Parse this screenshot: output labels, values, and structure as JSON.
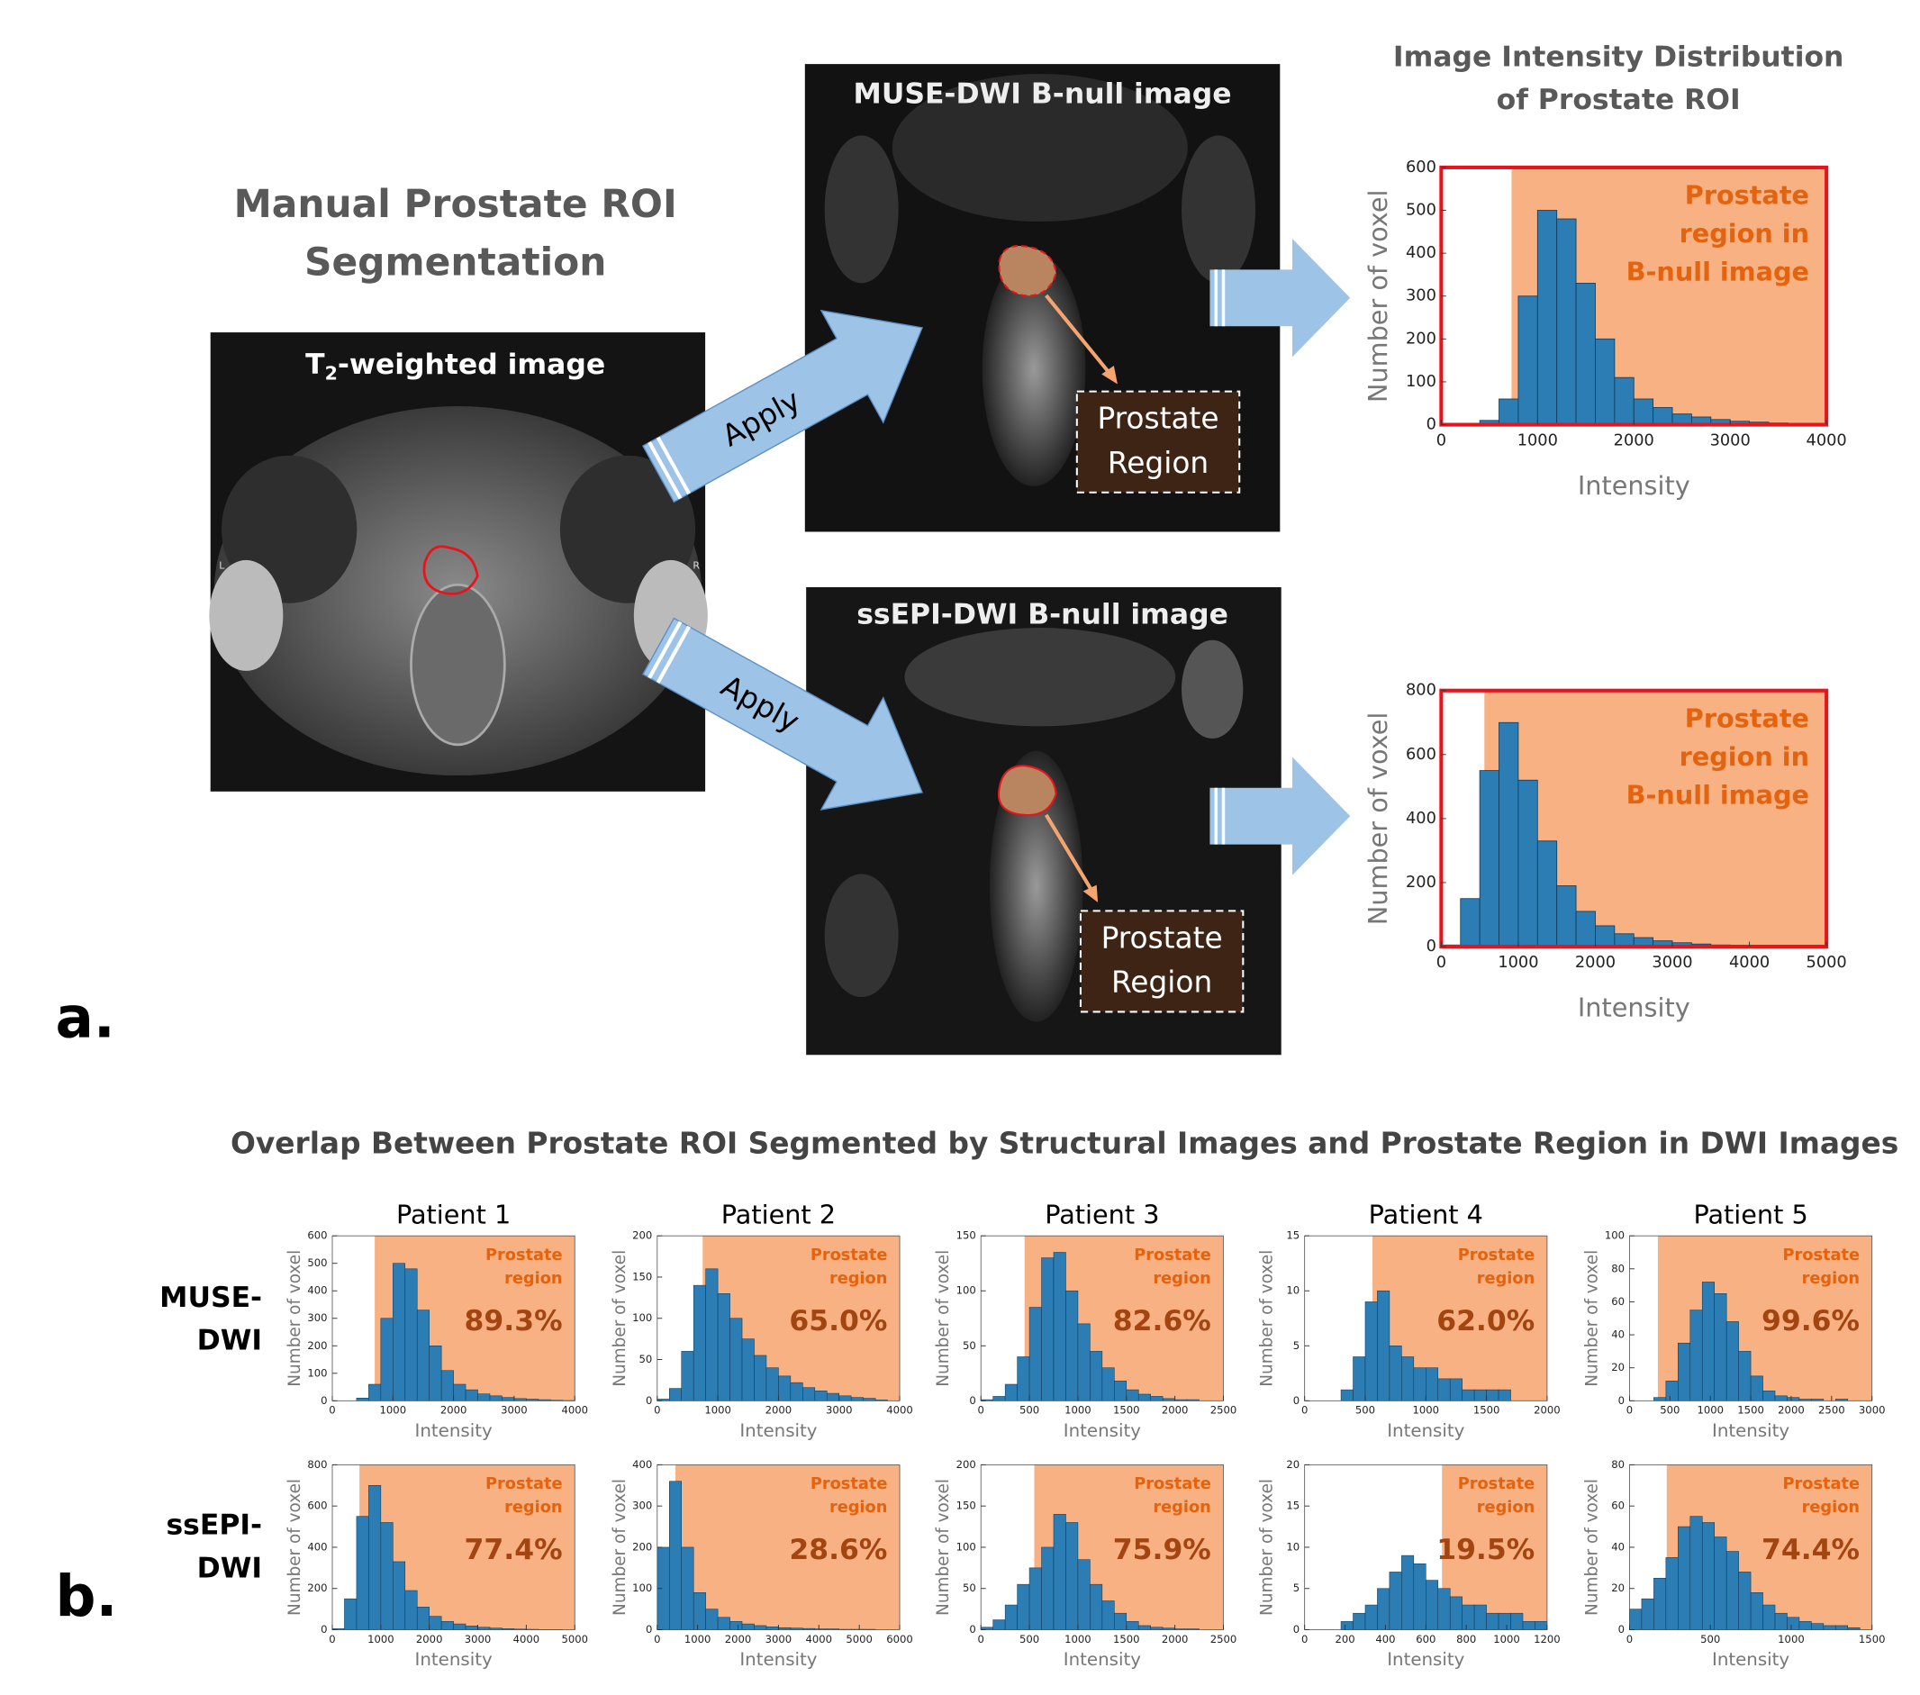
{
  "figure": {
    "panel_a_label": "a.",
    "panel_b_label": "b.",
    "segmentation_title": [
      "Manual Prostate ROI",
      "Segmentation"
    ],
    "t2_image_title": {
      "main": "T",
      "subscript": "2",
      "suffix": "-weighted image"
    },
    "orientation_marks": [
      "L",
      "R"
    ],
    "muse_image_title": "MUSE-DWI B-null image",
    "ssepi_image_title": "ssEPI-DWI B-null image",
    "region_box_lines": [
      "Prostate",
      "Region"
    ],
    "apply_labels": [
      "Apply",
      "Apply"
    ],
    "distribution_title": [
      "Image Intensity Distribution",
      "of Prostate ROI"
    ],
    "overlap_title": "Overlap Between Prostate ROI Segmented by Structural Images and Prostate Region in DWI Images",
    "row_labels": [
      [
        "MUSE-",
        "DWI"
      ],
      [
        "ssEPI-",
        "DWI"
      ]
    ]
  },
  "chart_data": [
    {
      "type": "histogram",
      "xlabel": "Intensity",
      "ylabel": "Number of voxel",
      "annotation": [
        "Prostate",
        "region in",
        "B-null image"
      ],
      "bins": [
        0,
        200,
        400,
        600,
        800,
        1000,
        1200,
        1400,
        1600,
        1800,
        2000,
        2200,
        2400,
        2600,
        2800,
        3000,
        3200,
        3400,
        3600,
        3800,
        4000
      ],
      "values": [
        0,
        0,
        10,
        60,
        300,
        500,
        480,
        330,
        200,
        110,
        60,
        40,
        25,
        18,
        12,
        8,
        6,
        4,
        2,
        1
      ],
      "color": "#2b7db3",
      "shade_from": 730,
      "shade_color": "#f8b183",
      "frame_color": "#e8141b",
      "xlim": [
        0,
        4000
      ],
      "ylim": [
        0,
        600
      ],
      "xticks": [
        0,
        1000,
        2000,
        3000,
        4000
      ],
      "yticks": [
        0,
        100,
        200,
        300,
        400,
        500,
        600
      ]
    },
    {
      "type": "histogram",
      "xlabel": "Intensity",
      "ylabel": "Number of voxel",
      "annotation": [
        "Prostate",
        "region in",
        "B-null image"
      ],
      "bins": [
        0,
        250,
        500,
        750,
        1000,
        1250,
        1500,
        1750,
        2000,
        2250,
        2500,
        2750,
        3000,
        3250,
        3500,
        3750,
        4000,
        4250,
        4500,
        4750,
        5000
      ],
      "values": [
        5,
        150,
        550,
        700,
        520,
        330,
        190,
        110,
        65,
        40,
        28,
        18,
        12,
        8,
        5,
        3,
        2,
        1,
        1,
        0
      ],
      "color": "#2b7db3",
      "shade_from": 560,
      "shade_color": "#f8b183",
      "frame_color": "#e8141b",
      "xlim": [
        0,
        5000
      ],
      "ylim": [
        0,
        800
      ],
      "xticks": [
        0,
        1000,
        2000,
        3000,
        4000,
        5000
      ],
      "yticks": [
        0,
        200,
        400,
        600,
        800
      ]
    },
    {
      "type": "histogram",
      "title": "Patient 1",
      "xlabel": "Intensity",
      "ylabel": "Number of voxel",
      "annotation": [
        "Prostate",
        "region"
      ],
      "percent": "89.3%",
      "bins": [
        0,
        200,
        400,
        600,
        800,
        1000,
        1200,
        1400,
        1600,
        1800,
        2000,
        2200,
        2400,
        2600,
        2800,
        3000,
        3200,
        3400,
        3600,
        3800,
        4000
      ],
      "values": [
        0,
        0,
        10,
        60,
        300,
        500,
        480,
        330,
        200,
        110,
        60,
        40,
        25,
        18,
        12,
        8,
        6,
        4,
        2,
        1
      ],
      "color": "#2b7db3",
      "shade_from": 700,
      "shade_color": "#f8b183",
      "xlim": [
        0,
        4000
      ],
      "ylim": [
        0,
        600
      ],
      "xticks": [
        0,
        1000,
        2000,
        3000,
        4000
      ],
      "yticks": [
        0,
        100,
        200,
        300,
        400,
        500,
        600
      ]
    },
    {
      "type": "histogram",
      "title": "Patient 2",
      "xlabel": "Intensity",
      "ylabel": "Number of voxel",
      "annotation": [
        "Prostate",
        "region"
      ],
      "percent": "65.0%",
      "bins": [
        0,
        200,
        400,
        600,
        800,
        1000,
        1200,
        1400,
        1600,
        1800,
        2000,
        2200,
        2400,
        2600,
        2800,
        3000,
        3200,
        3400,
        3600,
        3800,
        4000
      ],
      "values": [
        2,
        15,
        60,
        140,
        160,
        130,
        100,
        75,
        55,
        40,
        30,
        22,
        16,
        12,
        9,
        6,
        4,
        3,
        1,
        0
      ],
      "color": "#2b7db3",
      "shade_from": 750,
      "shade_color": "#f8b183",
      "xlim": [
        0,
        4000
      ],
      "ylim": [
        0,
        200
      ],
      "xticks": [
        0,
        1000,
        2000,
        3000,
        4000
      ],
      "yticks": [
        0,
        50,
        100,
        150,
        200
      ]
    },
    {
      "type": "histogram",
      "title": "Patient 3",
      "xlabel": "Intensity",
      "ylabel": "Number of voxel",
      "annotation": [
        "Prostate",
        "region"
      ],
      "percent": "82.6%",
      "bins": [
        0,
        125,
        250,
        375,
        500,
        625,
        750,
        875,
        1000,
        1125,
        1250,
        1375,
        1500,
        1625,
        1750,
        1875,
        2000,
        2125,
        2250,
        2375,
        2500
      ],
      "values": [
        1,
        4,
        15,
        40,
        85,
        130,
        135,
        100,
        70,
        45,
        30,
        18,
        10,
        6,
        4,
        2,
        1,
        1,
        0,
        0
      ],
      "color": "#2b7db3",
      "shade_from": 450,
      "shade_color": "#f8b183",
      "xlim": [
        0,
        2500
      ],
      "ylim": [
        0,
        150
      ],
      "xticks": [
        0,
        500,
        1000,
        1500,
        2000,
        2500
      ],
      "yticks": [
        0,
        50,
        100,
        150
      ]
    },
    {
      "type": "histogram",
      "title": "Patient 4",
      "xlabel": "Intensity",
      "ylabel": "Number of voxel",
      "annotation": [
        "Prostate",
        "region"
      ],
      "percent": "62.0%",
      "bins": [
        0,
        100,
        200,
        300,
        400,
        500,
        600,
        700,
        800,
        900,
        1000,
        1100,
        1200,
        1300,
        1400,
        1500,
        1600,
        1700,
        1800,
        1900,
        2000
      ],
      "values": [
        0,
        0,
        0,
        1,
        4,
        9,
        10,
        5,
        4,
        3,
        3,
        2,
        2,
        1,
        1,
        1,
        1,
        0,
        0,
        0
      ],
      "color": "#2b7db3",
      "shade_from": 560,
      "shade_color": "#f8b183",
      "xlim": [
        0,
        2000
      ],
      "ylim": [
        0,
        15
      ],
      "xticks": [
        0,
        500,
        1000,
        1500,
        2000
      ],
      "yticks": [
        0,
        5,
        10,
        15
      ]
    },
    {
      "type": "histogram",
      "title": "Patient 5",
      "xlabel": "Intensity",
      "ylabel": "Number of voxel",
      "annotation": [
        "Prostate",
        "region"
      ],
      "percent": "99.6%",
      "bins": [
        0,
        150,
        300,
        450,
        600,
        750,
        900,
        1050,
        1200,
        1350,
        1500,
        1650,
        1800,
        1950,
        2100,
        2250,
        2400,
        2550,
        2700,
        2850,
        3000
      ],
      "values": [
        0,
        0,
        2,
        12,
        35,
        55,
        72,
        65,
        48,
        30,
        15,
        6,
        3,
        2,
        1,
        1,
        0,
        1,
        0,
        0
      ],
      "color": "#2b7db3",
      "shade_from": 350,
      "shade_color": "#f8b183",
      "xlim": [
        0,
        3000
      ],
      "ylim": [
        0,
        100
      ],
      "xticks": [
        0,
        500,
        1000,
        1500,
        2000,
        2500,
        3000
      ],
      "yticks": [
        0,
        20,
        40,
        60,
        80,
        100
      ]
    },
    {
      "type": "histogram",
      "xlabel": "Intensity",
      "ylabel": "Number of voxel",
      "annotation": [
        "Prostate",
        "region"
      ],
      "percent": "77.4%",
      "bins": [
        0,
        250,
        500,
        750,
        1000,
        1250,
        1500,
        1750,
        2000,
        2250,
        2500,
        2750,
        3000,
        3250,
        3500,
        3750,
        4000,
        4250,
        4500,
        4750,
        5000
      ],
      "values": [
        5,
        150,
        550,
        700,
        520,
        330,
        190,
        110,
        65,
        40,
        28,
        18,
        12,
        8,
        5,
        3,
        2,
        1,
        1,
        0
      ],
      "color": "#2b7db3",
      "shade_from": 560,
      "shade_color": "#f8b183",
      "xlim": [
        0,
        5000
      ],
      "ylim": [
        0,
        800
      ],
      "xticks": [
        0,
        1000,
        2000,
        3000,
        4000,
        5000
      ],
      "yticks": [
        0,
        200,
        400,
        600,
        800
      ]
    },
    {
      "type": "histogram",
      "xlabel": "Intensity",
      "ylabel": "Number of voxel",
      "annotation": [
        "Prostate",
        "region"
      ],
      "percent": "28.6%",
      "bins": [
        0,
        300,
        600,
        900,
        1200,
        1500,
        1800,
        2100,
        2400,
        2700,
        3000,
        3300,
        3600,
        3900,
        4200,
        4500,
        4800,
        5100,
        5400,
        5700,
        6000
      ],
      "values": [
        200,
        360,
        200,
        90,
        50,
        30,
        20,
        14,
        10,
        7,
        5,
        4,
        3,
        2,
        2,
        1,
        1,
        1,
        0,
        0
      ],
      "color": "#2b7db3",
      "shade_from": 450,
      "shade_color": "#f8b183",
      "xlim": [
        0,
        6000
      ],
      "ylim": [
        0,
        400
      ],
      "xticks": [
        0,
        1000,
        2000,
        3000,
        4000,
        5000,
        6000
      ],
      "yticks": [
        0,
        100,
        200,
        300,
        400
      ]
    },
    {
      "type": "histogram",
      "xlabel": "Intensity",
      "ylabel": "Number of voxel",
      "annotation": [
        "Prostate",
        "region"
      ],
      "percent": "75.9%",
      "bins": [
        0,
        125,
        250,
        375,
        500,
        625,
        750,
        875,
        1000,
        1125,
        1250,
        1375,
        1500,
        1625,
        1750,
        1875,
        2000,
        2125,
        2250,
        2375,
        2500
      ],
      "values": [
        3,
        12,
        30,
        55,
        75,
        100,
        140,
        130,
        85,
        55,
        35,
        20,
        10,
        5,
        3,
        2,
        1,
        1,
        0,
        0
      ],
      "color": "#2b7db3",
      "shade_from": 550,
      "shade_color": "#f8b183",
      "xlim": [
        0,
        2500
      ],
      "ylim": [
        0,
        200
      ],
      "xticks": [
        0,
        500,
        1000,
        1500,
        2000,
        2500
      ],
      "yticks": [
        0,
        50,
        100,
        150,
        200
      ]
    },
    {
      "type": "histogram",
      "xlabel": "Intensity",
      "ylabel": "Number of voxel",
      "annotation": [
        "Prostate",
        "region"
      ],
      "percent": "19.5%",
      "bins": [
        0,
        60,
        120,
        180,
        240,
        300,
        360,
        420,
        480,
        540,
        600,
        660,
        720,
        780,
        840,
        900,
        960,
        1020,
        1080,
        1140,
        1200
      ],
      "values": [
        0,
        0,
        0,
        1,
        2,
        3,
        5,
        7,
        9,
        8,
        6,
        5,
        4,
        3,
        3,
        2,
        2,
        2,
        1,
        1
      ],
      "color": "#2b7db3",
      "shade_from": 680,
      "shade_color": "#f8b183",
      "xlim": [
        0,
        1200
      ],
      "ylim": [
        0,
        20
      ],
      "xticks": [
        0,
        200,
        400,
        600,
        800,
        1000,
        1200
      ],
      "yticks": [
        0,
        5,
        10,
        15,
        20
      ]
    },
    {
      "type": "histogram",
      "xlabel": "Intensity",
      "ylabel": "Number of voxel",
      "annotation": [
        "Prostate",
        "region"
      ],
      "percent": "74.4%",
      "bins": [
        0,
        75,
        150,
        225,
        300,
        375,
        450,
        525,
        600,
        675,
        750,
        825,
        900,
        975,
        1050,
        1125,
        1200,
        1275,
        1350,
        1425,
        1500
      ],
      "values": [
        10,
        15,
        25,
        35,
        50,
        55,
        52,
        45,
        38,
        28,
        18,
        12,
        8,
        6,
        4,
        3,
        2,
        2,
        1,
        0
      ],
      "color": "#2b7db3",
      "shade_from": 230,
      "shade_color": "#f8b183",
      "xlim": [
        0,
        1500
      ],
      "ylim": [
        0,
        80
      ],
      "xticks": [
        0,
        500,
        1000,
        1500
      ],
      "yticks": [
        0,
        20,
        40,
        60,
        80
      ]
    }
  ]
}
